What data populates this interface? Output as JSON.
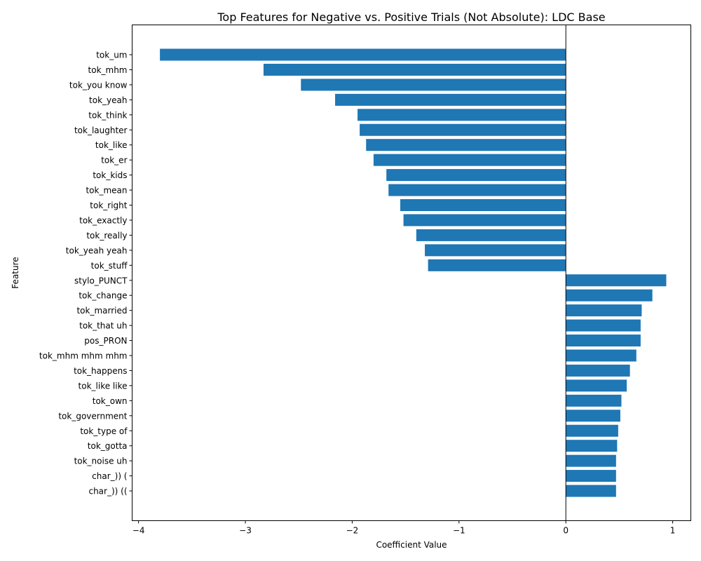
{
  "chart_data": {
    "type": "bar",
    "orientation": "horizontal",
    "title": "Top Features for Negative vs. Positive Trials (Not Absolute): LDC Base",
    "xlabel": "Coefficient Value",
    "ylabel": "Feature",
    "xlim": [
      -4.06,
      1.17
    ],
    "xticks": [
      -4,
      -3,
      -2,
      -1,
      0,
      1
    ],
    "zero_line": true,
    "bar_color": "#1f77b4",
    "categories": [
      "tok_um",
      "tok_mhm",
      "tok_you know",
      "tok_yeah",
      "tok_think",
      "tok_laughter",
      "tok_like",
      "tok_er",
      "tok_kids",
      "tok_mean",
      "tok_right",
      "tok_exactly",
      "tok_really",
      "tok_yeah yeah",
      "tok_stuff",
      "stylo_PUNCT",
      "tok_change",
      "tok_married",
      "tok_that uh",
      "pos_PRON",
      "tok_mhm mhm mhm",
      "tok_happens",
      "tok_like like",
      "tok_own",
      "tok_government",
      "tok_type of",
      "tok_gotta",
      "tok_noise uh",
      "char_)) (",
      "char_)) (("
    ],
    "values": [
      -3.8,
      -2.83,
      -2.48,
      -2.16,
      -1.95,
      -1.93,
      -1.87,
      -1.8,
      -1.68,
      -1.66,
      -1.55,
      -1.52,
      -1.4,
      -1.32,
      -1.29,
      0.94,
      0.81,
      0.71,
      0.7,
      0.7,
      0.66,
      0.6,
      0.57,
      0.52,
      0.51,
      0.49,
      0.48,
      0.47,
      0.47,
      0.47
    ]
  }
}
